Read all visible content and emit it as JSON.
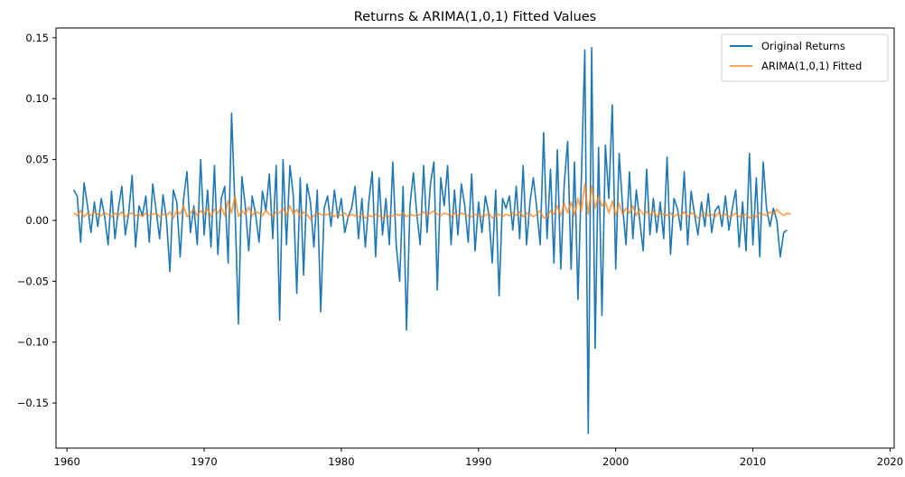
{
  "chart_data": {
    "type": "line",
    "title": "Returns & ARIMA(1,0,1) Fitted Values",
    "xlabel": "",
    "ylabel": "",
    "xlim": [
      1959.2,
      2020.3
    ],
    "ylim": [
      -0.187,
      0.158
    ],
    "x_ticks": [
      1960,
      1970,
      1980,
      1990,
      2000,
      2010,
      2020
    ],
    "y_ticks": [
      -0.15,
      -0.1,
      -0.05,
      0.0,
      0.05,
      0.1,
      0.15
    ],
    "x_tick_labels": [
      "1960",
      "1970",
      "1980",
      "1990",
      "2000",
      "2010",
      "2020"
    ],
    "y_tick_labels": [
      "−0.15",
      "−0.10",
      "−0.05",
      "0.00",
      "0.05",
      "0.10",
      "0.15"
    ],
    "grid": false,
    "legend_position": "top-right",
    "series": [
      {
        "name": "Original Returns",
        "color": "#1f77b4",
        "x_start": 1960.5,
        "x_step": 0.25,
        "values": [
          0.025,
          0.02,
          -0.018,
          0.031,
          0.012,
          -0.01,
          0.015,
          -0.005,
          0.018,
          0.003,
          -0.02,
          0.024,
          -0.015,
          0.01,
          0.028,
          -0.012,
          0.006,
          0.037,
          -0.022,
          0.012,
          0.004,
          0.02,
          -0.018,
          0.03,
          0.008,
          -0.015,
          0.021,
          0.001,
          -0.042,
          0.025,
          0.015,
          -0.03,
          0.018,
          0.04,
          -0.01,
          0.012,
          -0.02,
          0.05,
          -0.012,
          0.025,
          -0.022,
          0.045,
          -0.028,
          0.018,
          0.028,
          -0.035,
          0.088,
          0.01,
          -0.085,
          0.036,
          0.012,
          -0.025,
          0.02,
          0.005,
          -0.018,
          0.024,
          0.008,
          0.038,
          -0.015,
          0.045,
          -0.082,
          0.05,
          -0.02,
          0.045,
          0.02,
          -0.06,
          0.035,
          -0.045,
          0.03,
          0.015,
          -0.022,
          0.025,
          -0.075,
          0.01,
          0.02,
          -0.005,
          0.025,
          0.002,
          0.018,
          -0.01,
          0.003,
          0.01,
          0.028,
          -0.015,
          0.018,
          -0.022,
          0.015,
          0.04,
          -0.03,
          0.035,
          -0.012,
          0.018,
          -0.02,
          0.048,
          -0.02,
          -0.05,
          0.028,
          -0.09,
          0.012,
          0.039,
          0.005,
          -0.02,
          0.045,
          -0.01,
          0.03,
          0.048,
          -0.057,
          0.035,
          0.012,
          0.045,
          -0.02,
          0.025,
          -0.012,
          0.03,
          0.012,
          -0.018,
          0.038,
          -0.025,
          0.015,
          -0.01,
          0.02,
          0.005,
          -0.035,
          0.025,
          -0.062,
          0.018,
          0.01,
          0.02,
          -0.008,
          0.028,
          -0.015,
          0.045,
          -0.02,
          0.015,
          0.035,
          0.01,
          -0.02,
          0.072,
          -0.015,
          0.042,
          -0.035,
          0.058,
          -0.04,
          0.03,
          0.065,
          -0.04,
          0.048,
          -0.065,
          0.035,
          0.14,
          -0.175,
          0.142,
          -0.105,
          0.06,
          -0.078,
          0.062,
          0.018,
          0.095,
          -0.04,
          0.055,
          0.012,
          -0.02,
          0.04,
          -0.015,
          0.025,
          0.0,
          -0.025,
          0.042,
          -0.012,
          0.018,
          -0.01,
          0.015,
          -0.015,
          0.052,
          -0.028,
          0.018,
          0.01,
          -0.008,
          0.04,
          -0.02,
          0.024,
          0.005,
          -0.012,
          0.015,
          -0.005,
          0.022,
          -0.01,
          0.008,
          0.012,
          -0.005,
          0.02,
          -0.008,
          0.01,
          0.025,
          -0.022,
          0.015,
          -0.025,
          0.055,
          -0.02,
          0.035,
          -0.03,
          0.048,
          0.01,
          -0.005,
          0.01,
          0.0,
          -0.03,
          -0.01,
          -0.008
        ]
      },
      {
        "name": "ARIMA(1,0,1) Fitted",
        "color": "#ff7f0e",
        "x_start": 1960.5,
        "x_step": 0.25,
        "values": [
          0.006,
          0.004,
          0.008,
          0.003,
          0.006,
          0.004,
          0.007,
          0.005,
          0.004,
          0.006,
          0.005,
          0.003,
          0.006,
          0.004,
          0.007,
          0.003,
          0.005,
          0.006,
          0.004,
          0.005,
          0.003,
          0.006,
          0.004,
          0.005,
          0.006,
          0.003,
          0.005,
          0.004,
          0.007,
          0.002,
          0.008,
          0.005,
          0.012,
          0.003,
          0.006,
          0.009,
          0.004,
          0.008,
          0.005,
          0.01,
          0.003,
          0.009,
          0.006,
          0.011,
          0.004,
          0.016,
          0.006,
          0.02,
          0.003,
          0.008,
          0.005,
          0.011,
          0.004,
          0.007,
          0.006,
          0.004,
          0.008,
          0.005,
          0.003,
          0.007,
          0.006,
          0.01,
          0.004,
          0.012,
          0.005,
          0.009,
          0.003,
          0.007,
          0.005,
          0.001,
          0.004,
          0.006,
          0.005,
          0.004,
          0.005,
          0.006,
          0.003,
          0.005,
          0.004,
          0.006,
          0.003,
          0.005,
          0.004,
          0.003,
          0.005,
          0.002,
          0.004,
          0.003,
          0.005,
          0.004,
          0.002,
          0.004,
          0.003,
          0.004,
          0.005,
          0.004,
          0.006,
          0.003,
          0.005,
          0.004,
          0.004,
          0.005,
          0.007,
          0.004,
          0.006,
          0.008,
          0.005,
          0.004,
          0.006,
          0.005,
          0.003,
          0.006,
          0.004,
          0.006,
          0.005,
          0.004,
          0.003,
          0.005,
          0.004,
          0.003,
          0.004,
          0.006,
          0.002,
          0.004,
          0.005,
          0.003,
          0.005,
          0.004,
          0.006,
          0.004,
          0.007,
          0.003,
          0.006,
          0.005,
          0.003,
          0.005,
          0.008,
          0.002,
          0.003,
          0.008,
          0.005,
          0.012,
          0.004,
          0.014,
          0.006,
          0.015,
          0.004,
          0.018,
          0.008,
          0.03,
          0.005,
          0.028,
          0.01,
          0.02,
          0.012,
          0.015,
          0.006,
          0.016,
          0.004,
          0.014,
          0.005,
          0.01,
          0.006,
          0.012,
          0.004,
          0.009,
          0.005,
          0.007,
          0.004,
          0.008,
          0.003,
          0.006,
          0.005,
          0.004,
          0.006,
          0.003,
          0.005,
          0.004,
          0.007,
          0.003,
          0.006,
          0.005,
          0.002,
          0.004,
          0.006,
          0.004,
          0.005,
          0.003,
          0.006,
          0.004,
          0.005,
          0.003,
          0.004,
          0.006,
          0.003,
          0.004,
          0.005,
          0.002,
          0.004,
          0.003,
          0.006,
          0.005,
          0.004,
          0.007,
          0.005,
          0.009,
          0.006,
          0.004,
          0.006,
          0.005
        ]
      }
    ]
  }
}
